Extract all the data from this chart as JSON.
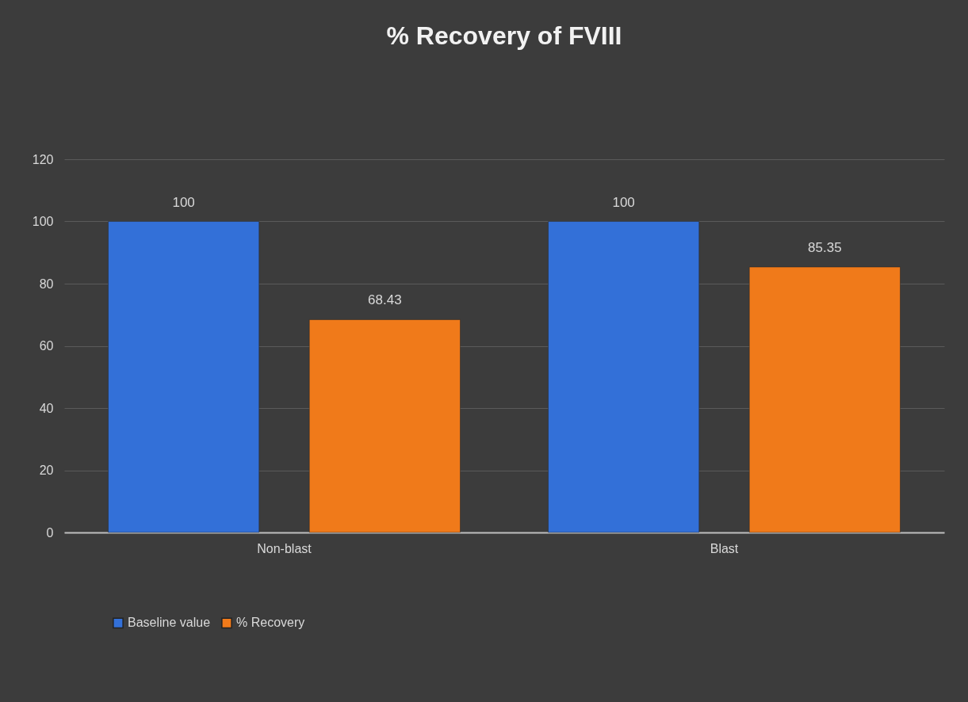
{
  "chart_data": {
    "type": "bar",
    "title": "% Recovery of FVIII",
    "categories": [
      "Non-blast",
      "Blast"
    ],
    "series": [
      {
        "name": "Baseline value",
        "color": "#3370d8",
        "values": [
          100,
          100
        ]
      },
      {
        "name": "% Recovery",
        "color": "#f07a1a",
        "values": [
          68.43,
          85.35
        ]
      }
    ],
    "ylim": [
      0,
      120
    ],
    "yticks": [
      0,
      20,
      40,
      60,
      80,
      100,
      120
    ],
    "grid": "y",
    "legend": "bottom",
    "data_labels": true
  }
}
